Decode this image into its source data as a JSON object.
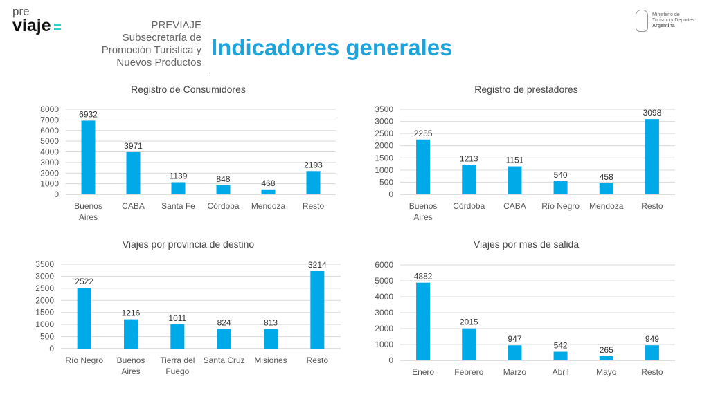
{
  "header": {
    "logo_pre": "pre",
    "logo_main": "viaje",
    "subtitle_lines": [
      "PREVIAJE",
      "Subsecretaría de",
      "Promoción Turística y",
      "Nuevos Productos"
    ],
    "title": "Indicadores generales",
    "ministry_lines": [
      "Ministerio de",
      "Turismo y Deportes",
      "Argentina"
    ]
  },
  "colors": {
    "bar": "#00a9e8",
    "title": "#1ea4dc",
    "grid": "#d9d9d9"
  },
  "chart_data": [
    {
      "type": "bar",
      "title": "Registro de Consumidores",
      "categories": [
        "Buenos\nAires",
        "CABA",
        "Santa Fe",
        "Córdoba",
        "Mendoza",
        "Resto"
      ],
      "values": [
        6932,
        3971,
        1139,
        848,
        468,
        2193
      ],
      "ylim": [
        0,
        8000
      ],
      "yticks": [
        0,
        1000,
        2000,
        3000,
        4000,
        5000,
        6000,
        7000,
        8000
      ]
    },
    {
      "type": "bar",
      "title": "Registro de prestadores",
      "categories": [
        "Buenos\nAires",
        "Córdoba",
        "CABA",
        "Río Negro",
        "Mendoza",
        "Resto"
      ],
      "values": [
        2255,
        1213,
        1151,
        540,
        458,
        3098
      ],
      "ylim": [
        0,
        3500
      ],
      "yticks": [
        0,
        500,
        1000,
        1500,
        2000,
        2500,
        3000,
        3500
      ]
    },
    {
      "type": "bar",
      "title": "Viajes por provincia de destino",
      "categories": [
        "Río Negro",
        "Buenos\nAires",
        "Tierra del\nFuego",
        "Santa Cruz",
        "Misiones",
        "Resto"
      ],
      "values": [
        2522,
        1216,
        1011,
        824,
        813,
        3214
      ],
      "ylim": [
        0,
        3500
      ],
      "yticks": [
        0,
        500,
        1000,
        1500,
        2000,
        2500,
        3000,
        3500
      ]
    },
    {
      "type": "bar",
      "title": "Viajes por mes de salida",
      "categories": [
        "Enero",
        "Febrero",
        "Marzo",
        "Abril",
        "Mayo",
        "Resto"
      ],
      "values": [
        4882,
        2015,
        947,
        542,
        265,
        949
      ],
      "ylim": [
        0,
        6000
      ],
      "yticks": [
        0,
        1000,
        2000,
        3000,
        4000,
        5000,
        6000
      ]
    }
  ]
}
